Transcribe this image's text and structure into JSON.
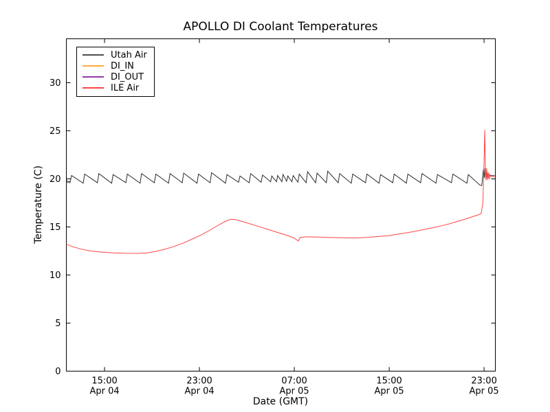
{
  "title": "APOLLO DI Coolant Temperatures",
  "xlabel": "Date (GMT)",
  "ylabel": "Temperature (C)",
  "legend": {
    "items": [
      {
        "label": "Utah Air",
        "color": "#4d4d4d"
      },
      {
        "label": "DI_IN",
        "color": "#ffaa3c"
      },
      {
        "label": "DI_OUT",
        "color": "#9038a8"
      },
      {
        "label": "ILE Air",
        "color": "#ff4444"
      }
    ]
  },
  "chart_data": {
    "type": "line",
    "xlabel": "Date (GMT)",
    "ylabel": "Temperature (C)",
    "x_units": "hours since Apr 04 00:00 GMT",
    "xlim": [
      11.78,
      47.95
    ],
    "ylim": [
      0,
      34.57
    ],
    "grid": false,
    "legend_position": "upper left",
    "x_ticks": [
      {
        "t": 15,
        "time": "15:00",
        "date": "Apr 04"
      },
      {
        "t": 23,
        "time": "23:00",
        "date": "Apr 04"
      },
      {
        "t": 31,
        "time": "07:00",
        "date": "Apr 05"
      },
      {
        "t": 39,
        "time": "15:00",
        "date": "Apr 05"
      },
      {
        "t": 47,
        "time": "23:00",
        "date": "Apr 05"
      }
    ],
    "y_ticks": [
      0,
      5,
      10,
      15,
      20,
      25,
      30
    ],
    "series": [
      {
        "name": "Utah Air",
        "color": "#2a2a2a",
        "points": [
          [
            11.78,
            19.95
          ],
          [
            11.9,
            19.6
          ],
          [
            12.0,
            19.75
          ],
          [
            12.08,
            19.6
          ],
          [
            12.22,
            20.35
          ],
          [
            13.2,
            19.55
          ],
          [
            13.32,
            20.5
          ],
          [
            14.4,
            19.6
          ],
          [
            14.52,
            20.55
          ],
          [
            15.6,
            19.55
          ],
          [
            15.72,
            20.45
          ],
          [
            16.8,
            19.6
          ],
          [
            16.92,
            20.5
          ],
          [
            18.0,
            19.55
          ],
          [
            18.12,
            20.55
          ],
          [
            19.2,
            19.6
          ],
          [
            19.32,
            20.5
          ],
          [
            20.4,
            19.55
          ],
          [
            20.52,
            20.55
          ],
          [
            21.55,
            19.6
          ],
          [
            21.67,
            20.6
          ],
          [
            22.8,
            19.55
          ],
          [
            22.92,
            20.5
          ],
          [
            23.9,
            19.6
          ],
          [
            24.02,
            20.65
          ],
          [
            25.2,
            19.55
          ],
          [
            25.32,
            20.45
          ],
          [
            26.3,
            19.65
          ],
          [
            26.42,
            20.3
          ],
          [
            27.2,
            19.6
          ],
          [
            27.32,
            20.55
          ],
          [
            28.2,
            19.65
          ],
          [
            28.32,
            20.4
          ],
          [
            29.0,
            19.7
          ],
          [
            29.1,
            20.3
          ],
          [
            29.5,
            19.7
          ],
          [
            29.6,
            20.35
          ],
          [
            29.95,
            19.7
          ],
          [
            30.05,
            20.45
          ],
          [
            30.35,
            19.75
          ],
          [
            30.45,
            20.3
          ],
          [
            30.8,
            19.7
          ],
          [
            30.9,
            20.35
          ],
          [
            31.3,
            19.65
          ],
          [
            31.42,
            20.5
          ],
          [
            32.0,
            19.6
          ],
          [
            32.12,
            20.75
          ],
          [
            32.8,
            19.6
          ],
          [
            32.92,
            20.6
          ],
          [
            33.7,
            19.6
          ],
          [
            33.82,
            20.8
          ],
          [
            34.7,
            19.6
          ],
          [
            34.82,
            20.55
          ],
          [
            35.8,
            19.55
          ],
          [
            35.92,
            20.5
          ],
          [
            37.0,
            19.6
          ],
          [
            37.12,
            20.5
          ],
          [
            38.15,
            19.55
          ],
          [
            38.27,
            20.45
          ],
          [
            39.3,
            19.6
          ],
          [
            39.42,
            20.5
          ],
          [
            40.45,
            19.55
          ],
          [
            40.57,
            20.5
          ],
          [
            41.65,
            19.6
          ],
          [
            41.77,
            20.55
          ],
          [
            42.95,
            19.55
          ],
          [
            43.07,
            20.45
          ],
          [
            44.25,
            19.6
          ],
          [
            44.37,
            20.5
          ],
          [
            45.55,
            19.55
          ],
          [
            45.67,
            20.45
          ],
          [
            46.65,
            19.35
          ],
          [
            46.8,
            19.3
          ],
          [
            46.95,
            21.0
          ],
          [
            47.02,
            20.1
          ],
          [
            47.08,
            21.15
          ],
          [
            47.15,
            20.15
          ],
          [
            47.3,
            20.5
          ],
          [
            47.55,
            20.35
          ],
          [
            47.9,
            20.35
          ]
        ]
      },
      {
        "name": "DI_IN",
        "color": "#ffaa3c",
        "points": [
          [
            47.1,
            20.4
          ],
          [
            47.2,
            20.9
          ],
          [
            47.3,
            20.2
          ],
          [
            47.45,
            20.5
          ],
          [
            47.6,
            20.3
          ]
        ]
      },
      {
        "name": "DI_OUT",
        "color": "#9038a8",
        "points": [
          [
            47.12,
            20.2
          ],
          [
            47.22,
            20.7
          ],
          [
            47.32,
            20.1
          ],
          [
            47.5,
            20.4
          ],
          [
            47.65,
            20.25
          ]
        ]
      },
      {
        "name": "ILE Air",
        "color": "#ff4444",
        "points": [
          [
            11.78,
            13.2
          ],
          [
            12.3,
            12.95
          ],
          [
            13.0,
            12.7
          ],
          [
            13.8,
            12.5
          ],
          [
            14.8,
            12.38
          ],
          [
            15.8,
            12.3
          ],
          [
            16.8,
            12.26
          ],
          [
            17.8,
            12.25
          ],
          [
            18.6,
            12.3
          ],
          [
            19.3,
            12.45
          ],
          [
            20.0,
            12.65
          ],
          [
            20.8,
            12.95
          ],
          [
            21.6,
            13.3
          ],
          [
            22.4,
            13.75
          ],
          [
            23.2,
            14.2
          ],
          [
            24.0,
            14.75
          ],
          [
            24.7,
            15.25
          ],
          [
            25.3,
            15.65
          ],
          [
            25.7,
            15.8
          ],
          [
            26.1,
            15.75
          ],
          [
            26.8,
            15.5
          ],
          [
            27.6,
            15.2
          ],
          [
            28.5,
            14.85
          ],
          [
            29.4,
            14.5
          ],
          [
            30.3,
            14.15
          ],
          [
            31.0,
            13.85
          ],
          [
            31.25,
            13.6
          ],
          [
            31.35,
            13.55
          ],
          [
            31.5,
            13.92
          ],
          [
            32.0,
            13.97
          ],
          [
            33.0,
            13.95
          ],
          [
            34.0,
            13.9
          ],
          [
            35.0,
            13.87
          ],
          [
            36.0,
            13.85
          ],
          [
            37.0,
            13.9
          ],
          [
            38.0,
            14.0
          ],
          [
            39.0,
            14.1
          ],
          [
            40.0,
            14.3
          ],
          [
            41.0,
            14.5
          ],
          [
            42.0,
            14.75
          ],
          [
            43.0,
            15.0
          ],
          [
            44.0,
            15.3
          ],
          [
            44.8,
            15.6
          ],
          [
            45.5,
            15.85
          ],
          [
            46.1,
            16.1
          ],
          [
            46.5,
            16.25
          ],
          [
            46.75,
            16.4
          ],
          [
            46.9,
            17.5
          ],
          [
            47.0,
            22.0
          ],
          [
            47.06,
            25.1
          ],
          [
            47.12,
            20.3
          ],
          [
            47.17,
            19.85
          ],
          [
            47.22,
            21.1
          ],
          [
            47.28,
            19.9
          ],
          [
            47.35,
            20.7
          ],
          [
            47.42,
            20.0
          ],
          [
            47.55,
            20.3
          ],
          [
            47.75,
            20.2
          ],
          [
            47.9,
            20.25
          ]
        ]
      }
    ]
  }
}
